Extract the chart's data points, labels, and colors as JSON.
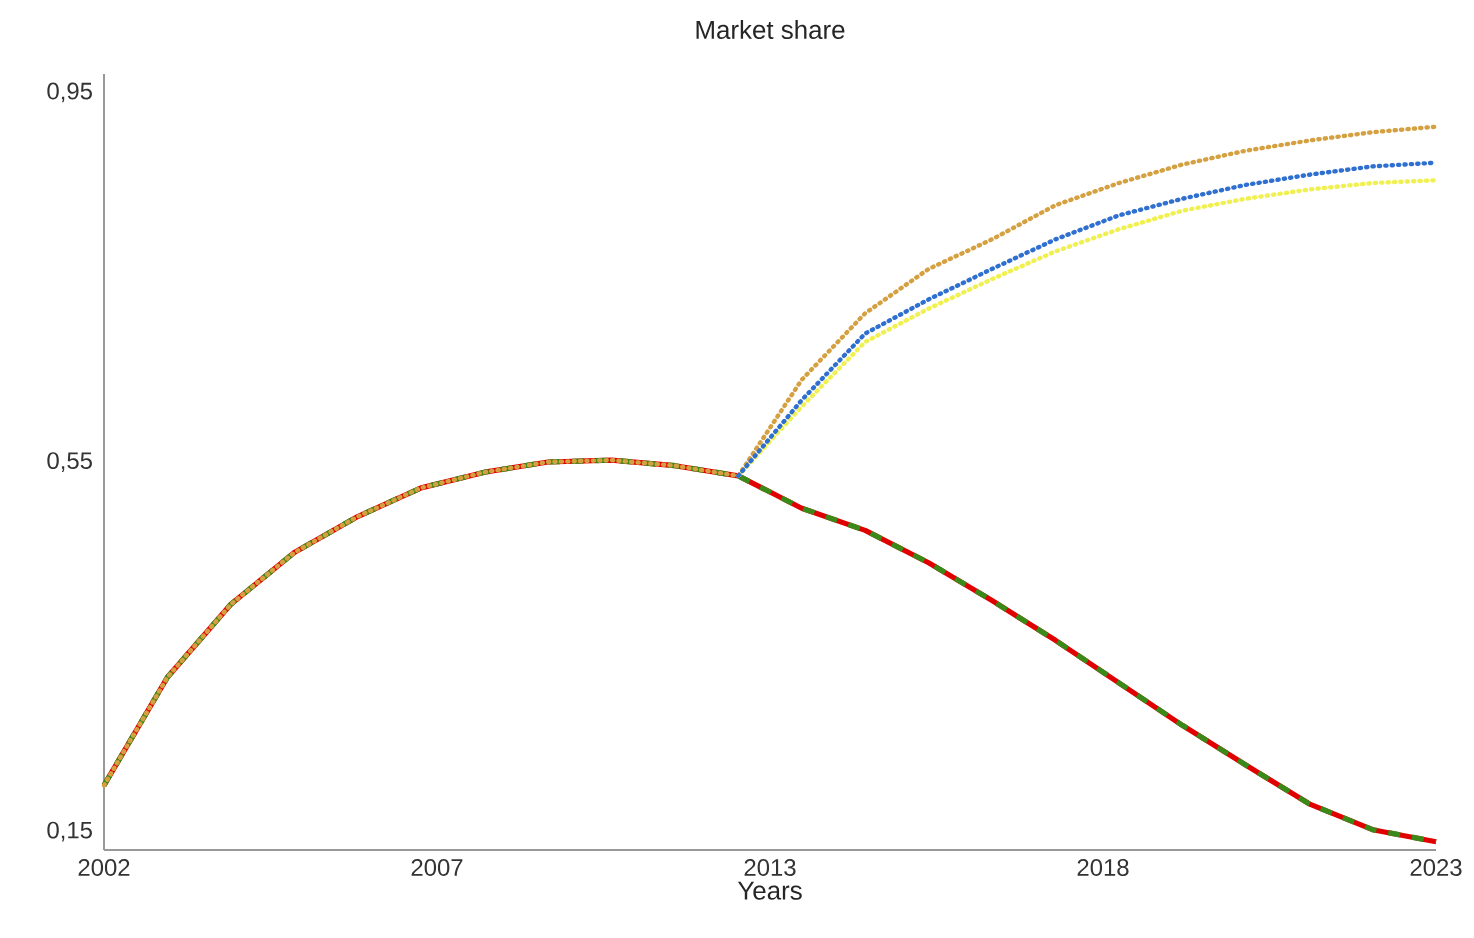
{
  "chart_data": {
    "type": "line",
    "title": "Market share",
    "xlabel": "Years",
    "xlim": [
      2002,
      2023
    ],
    "ylim": [
      0.13,
      0.97
    ],
    "xticks": [
      2002,
      {
        "value": 2007.25,
        "label": "2007"
      },
      {
        "value": 2012.5,
        "label": "2013"
      },
      {
        "value": 2017.75,
        "label": "2018"
      },
      2023
    ],
    "yticks": [
      {
        "value": 0.15,
        "label": "0,15"
      },
      {
        "value": 0.55,
        "label": "0,55"
      },
      {
        "value": 0.95,
        "label": "0,95"
      }
    ],
    "grid": false,
    "legend": false,
    "marker": "none",
    "x": [
      2002,
      2003,
      2004,
      2005,
      2006,
      2007,
      2008,
      2009,
      2010,
      2011,
      2012,
      2013,
      2014,
      2015,
      2016,
      2017,
      2018,
      2019,
      2020,
      2021,
      2022,
      2023
    ],
    "series": [
      {
        "color": "#e00000",
        "line_style": "solid",
        "values": [
          0.2,
          0.317,
          0.396,
          0.452,
          0.491,
          0.522,
          0.539,
          0.55,
          0.552,
          0.546,
          0.535,
          0.5,
          0.476,
          0.441,
          0.4,
          0.357,
          0.311,
          0.265,
          0.222,
          0.18,
          0.152,
          0.139
        ]
      },
      {
        "color": "#3a8a1a",
        "line_style": "dashed",
        "values": [
          0.2,
          0.317,
          0.396,
          0.452,
          0.491,
          0.522,
          0.539,
          0.55,
          0.552,
          0.546,
          0.535,
          0.5,
          0.476,
          0.441,
          0.4,
          0.357,
          0.311,
          0.265,
          0.222,
          0.18,
          0.152,
          0.139
        ]
      },
      {
        "color": "#d4a040",
        "line_style": "dotted",
        "values": [
          0.2,
          0.317,
          0.396,
          0.452,
          0.491,
          0.522,
          0.539,
          0.55,
          0.552,
          0.546,
          0.535,
          0.639,
          0.711,
          0.759,
          0.791,
          0.828,
          0.852,
          0.872,
          0.887,
          0.898,
          0.907,
          0.913
        ]
      },
      {
        "color": "#f0f050",
        "line_style": "dotted",
        "values": [
          null,
          null,
          null,
          null,
          null,
          null,
          null,
          null,
          null,
          null,
          0.535,
          0.61,
          0.68,
          0.716,
          0.748,
          0.778,
          0.802,
          0.822,
          0.835,
          0.845,
          0.852,
          0.855
        ]
      },
      {
        "color": "#2f6fd0",
        "line_style": "dotted",
        "values": [
          null,
          null,
          null,
          null,
          null,
          null,
          null,
          null,
          null,
          null,
          0.535,
          0.617,
          0.689,
          0.726,
          0.759,
          0.791,
          0.817,
          0.835,
          0.85,
          0.861,
          0.87,
          0.874
        ]
      }
    ]
  }
}
